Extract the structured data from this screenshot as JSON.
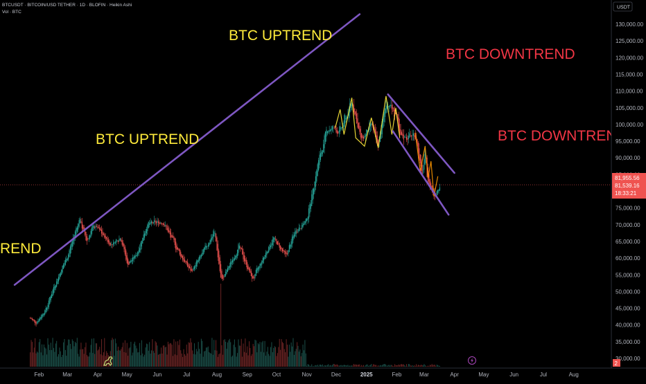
{
  "header": {
    "title": "BTCUSDT · BITCOIN/USD TETHER · 1D · BLOFIN · Heikin Ashi",
    "sub": "Vol · BTC"
  },
  "currency_button": "USDT",
  "last_price": "81,955.56",
  "current_price": "81,539.16",
  "countdown": "18:33:21",
  "badge_2": "2",
  "annotations": {
    "uptrend_top": "BTC UPTREND",
    "uptrend_mid": "BTC UPTREND",
    "uptrend_left": "REND",
    "downtrend_top": "BTC DOWNTREND",
    "downtrend_right": "BTC DOWNTREND"
  },
  "colors": {
    "up": "#26a69a",
    "down": "#ef5350",
    "trendline": "#7e57c2",
    "annotation_yellow": "#ffeb3b",
    "annotation_red": "#f23645",
    "highlight_yellow": "#ffeb3b",
    "highlight_orange": "#ff9800"
  },
  "chart_data": {
    "type": "candlestick",
    "subtype": "Heikin Ashi",
    "y_ticks": [
      "130,000.00",
      "125,000.00",
      "120,000.00",
      "115,000.00",
      "110,000.00",
      "105,000.00",
      "100,000.00",
      "95,000.00",
      "90,000.00",
      "85,000.00",
      "80,000.00",
      "75,000.00",
      "70,000.00",
      "65,000.00",
      "60,000.00",
      "55,000.00",
      "50,000.00",
      "45,000.00",
      "40,000.00",
      "35,000.00",
      "30,000.00"
    ],
    "x_ticks": [
      "Feb",
      "Mar",
      "Apr",
      "May",
      "Jun",
      "Jul",
      "Aug",
      "Sep",
      "Oct",
      "Nov",
      "Dec",
      "2025",
      "Feb",
      "Mar",
      "Apr",
      "May",
      "Jun",
      "Jul",
      "Aug"
    ],
    "ylim": [
      28000,
      134000
    ],
    "price_anchors": [
      [
        "2024-01-23",
        42000
      ],
      [
        "2024-01-28",
        40500
      ],
      [
        "2024-02-08",
        45000
      ],
      [
        "2024-02-15",
        51000
      ],
      [
        "2024-03-01",
        61000
      ],
      [
        "2024-03-13",
        72000
      ],
      [
        "2024-03-20",
        65000
      ],
      [
        "2024-03-28",
        70000
      ],
      [
        "2024-04-14",
        64000
      ],
      [
        "2024-04-24",
        66500
      ],
      [
        "2024-05-01",
        58000
      ],
      [
        "2024-05-10",
        61000
      ],
      [
        "2024-05-21",
        70000
      ],
      [
        "2024-06-06",
        71000
      ],
      [
        "2024-06-24",
        61000
      ],
      [
        "2024-07-05",
        56000
      ],
      [
        "2024-07-14",
        60000
      ],
      [
        "2024-07-29",
        68000
      ],
      [
        "2024-08-05",
        53000
      ],
      [
        "2024-08-23",
        63500
      ],
      [
        "2024-09-06",
        53500
      ],
      [
        "2024-09-27",
        66000
      ],
      [
        "2024-10-10",
        60500
      ],
      [
        "2024-10-20",
        68500
      ],
      [
        "2024-10-31",
        71000
      ],
      [
        "2024-11-12",
        88500
      ],
      [
        "2024-11-22",
        99000
      ],
      [
        "2024-12-05",
        98000
      ],
      [
        "2024-12-17",
        107000
      ],
      [
        "2024-12-26",
        95000
      ],
      [
        "2025-01-06",
        100000
      ],
      [
        "2025-01-12",
        93000
      ],
      [
        "2025-01-21",
        107000
      ],
      [
        "2025-01-31",
        103000
      ],
      [
        "2025-02-03",
        96000
      ],
      [
        "2025-02-20",
        97000
      ],
      [
        "2025-02-26",
        84000
      ],
      [
        "2025-03-02",
        92000
      ],
      [
        "2025-03-04",
        83000
      ],
      [
        "2025-03-11",
        79000
      ],
      [
        "2025-03-17",
        82500
      ]
    ],
    "trendlines": [
      {
        "from": [
          "2024-01-07",
          52000
        ],
        "to": [
          "2024-12-25",
          133000
        ]
      },
      {
        "from": [
          "2025-01-23",
          109000
        ],
        "to": [
          "2025-04-01",
          85500
        ]
      },
      {
        "from": [
          "2025-01-28",
          98000
        ],
        "to": [
          "2025-03-26",
          73000
        ]
      }
    ],
    "last_price": 81955.56,
    "current_price": 81539.16
  }
}
